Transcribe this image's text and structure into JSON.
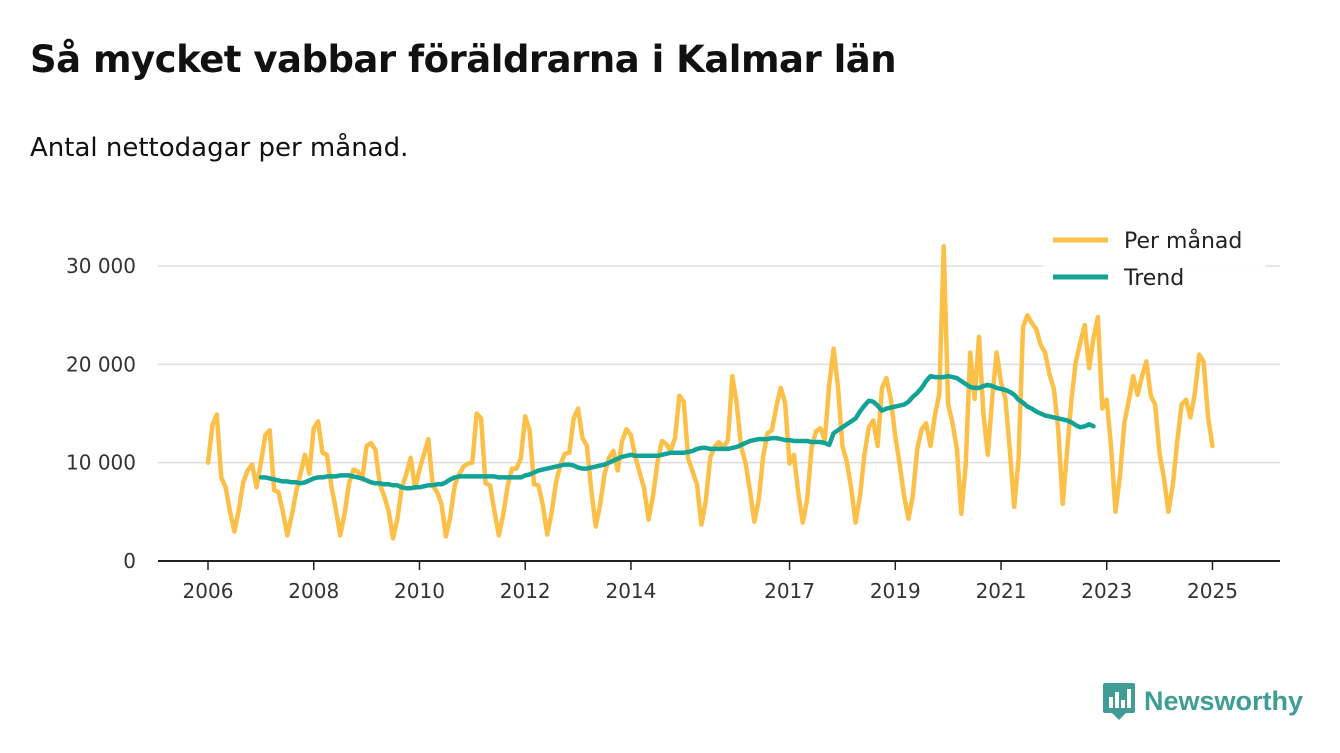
{
  "title": "Så mycket vabbar föräldrarna i Kalmar län",
  "subtitle": "Antal nettodagar per månad.",
  "brand": {
    "name": "Newsworthy",
    "icon": "bar-chart-logo-icon"
  },
  "colors": {
    "per_month": "#fcc048",
    "trend": "#13a396",
    "grid": "#dddddd",
    "axis": "#222222",
    "brand": "#3f9d95"
  },
  "chart_data": {
    "type": "line",
    "title": "Så mycket vabbar föräldrarna i Kalmar län",
    "subtitle": "Antal nettodagar per månad.",
    "xlabel": "",
    "ylabel": "",
    "xlim": [
      2006,
      2025.35
    ],
    "ylim": [
      0,
      30000
    ],
    "x_ticks": [
      2006,
      2008,
      2010,
      2012,
      2014,
      2017,
      2019,
      2021,
      2023,
      2025
    ],
    "y_ticks": [
      0,
      10000,
      20000,
      30000
    ],
    "y_tick_labels": [
      "0",
      "10 000",
      "20 000",
      "30 000"
    ],
    "grid": true,
    "legend_position": "top-right",
    "series": [
      {
        "name": "Per månad",
        "x_start": 2006.0,
        "step": 0.08333,
        "values": [
          10000,
          13800,
          14900,
          8500,
          7500,
          5000,
          3000,
          5200,
          8000,
          9200,
          9800,
          7500,
          10000,
          12800,
          13300,
          7200,
          7000,
          5000,
          2600,
          4600,
          7000,
          8900,
          10800,
          8900,
          13500,
          14200,
          11000,
          10800,
          7600,
          5300,
          2600,
          4800,
          7900,
          9300,
          9100,
          8300,
          11700,
          12000,
          11300,
          7800,
          6600,
          5100,
          2300,
          4300,
          7500,
          8800,
          10500,
          7400,
          9300,
          10800,
          12400,
          7700,
          7000,
          5800,
          2500,
          4500,
          7700,
          8800,
          9600,
          9900,
          10000,
          15000,
          14500,
          7900,
          7700,
          5100,
          2600,
          4700,
          7600,
          9400,
          9400,
          10400,
          14700,
          13300,
          7800,
          7700,
          5700,
          2700,
          4900,
          8000,
          9800,
          10900,
          11000,
          14500,
          15500,
          12500,
          11700,
          7200,
          3500,
          5700,
          8800,
          10500,
          11200,
          9200,
          12200,
          13400,
          12800,
          10600,
          9000,
          7400,
          4200,
          6600,
          10000,
          12200,
          11900,
          11200,
          12500,
          16800,
          16200,
          10400,
          9100,
          7800,
          3700,
          6100,
          10500,
          11600,
          12100,
          11500,
          12300,
          18800,
          16000,
          11600,
          10000,
          7200,
          4000,
          6200,
          10600,
          13000,
          13300,
          15700,
          17600,
          16100,
          9900,
          10800,
          6900,
          3900,
          6200,
          11500,
          13200,
          13500,
          12300,
          17900,
          21600,
          17700,
          11700,
          10100,
          7400,
          3900,
          6600,
          10800,
          13600,
          14300,
          11700,
          17600,
          18600,
          16400,
          12700,
          9800,
          6600,
          4300,
          6700,
          11400,
          13400,
          14000,
          11700,
          14800,
          17000,
          32000,
          16000,
          14000,
          11400,
          4800,
          9800,
          21200,
          16500,
          22800,
          15000,
          10800,
          16500,
          21200,
          18200,
          16500,
          11300,
          5500,
          10400,
          23800,
          25000,
          24200,
          23600,
          22000,
          21200,
          19000,
          17500,
          13300,
          5800,
          11200,
          16500,
          20300,
          22200,
          24000,
          19600,
          22700,
          24800,
          15500,
          16400,
          11600,
          5000,
          8600,
          14000,
          16300,
          18800,
          16900,
          18800,
          20300,
          16800,
          15900,
          10900,
          8400,
          5000,
          7700,
          12100,
          15900,
          16400,
          14600,
          17000,
          21000,
          20300,
          14600,
          11700
        ]
      },
      {
        "name": "Trend",
        "x_start": 2007.0,
        "step": 0.08333,
        "values": [
          8500,
          8500,
          8400,
          8300,
          8200,
          8100,
          8100,
          8000,
          8000,
          7900,
          8000,
          8200,
          8400,
          8500,
          8500,
          8600,
          8600,
          8600,
          8700,
          8700,
          8700,
          8600,
          8500,
          8400,
          8200,
          8000,
          7900,
          7900,
          7800,
          7800,
          7700,
          7700,
          7500,
          7400,
          7400,
          7500,
          7500,
          7600,
          7700,
          7700,
          7800,
          7800,
          8000,
          8300,
          8500,
          8600,
          8600,
          8600,
          8600,
          8600,
          8600,
          8600,
          8600,
          8600,
          8500,
          8500,
          8500,
          8500,
          8500,
          8500,
          8700,
          8800,
          9000,
          9200,
          9300,
          9400,
          9500,
          9600,
          9700,
          9800,
          9800,
          9700,
          9500,
          9400,
          9400,
          9500,
          9600,
          9700,
          9800,
          10000,
          10200,
          10400,
          10600,
          10700,
          10800,
          10700,
          10700,
          10700,
          10700,
          10700,
          10700,
          10800,
          10900,
          11000,
          11000,
          11000,
          11000,
          11100,
          11200,
          11400,
          11500,
          11500,
          11400,
          11400,
          11400,
          11400,
          11400,
          11500,
          11600,
          11800,
          12000,
          12200,
          12300,
          12400,
          12400,
          12400,
          12500,
          12500,
          12400,
          12300,
          12300,
          12200,
          12200,
          12200,
          12200,
          12100,
          12100,
          12100,
          12000,
          11800,
          13000,
          13300,
          13600,
          13900,
          14200,
          14500,
          15200,
          15800,
          16300,
          16200,
          15800,
          15300,
          15500,
          15600,
          15700,
          15800,
          15900,
          16200,
          16700,
          17100,
          17600,
          18300,
          18800,
          18700,
          18700,
          18700,
          18800,
          18700,
          18600,
          18300,
          18000,
          17700,
          17600,
          17600,
          17800,
          17900,
          17800,
          17600,
          17500,
          17400,
          17200,
          16900,
          16400,
          16100,
          15700,
          15500,
          15200,
          15000,
          14800,
          14700,
          14600,
          14500,
          14400,
          14300,
          14100,
          13800,
          13600,
          13700,
          13900,
          13700
        ]
      }
    ]
  }
}
